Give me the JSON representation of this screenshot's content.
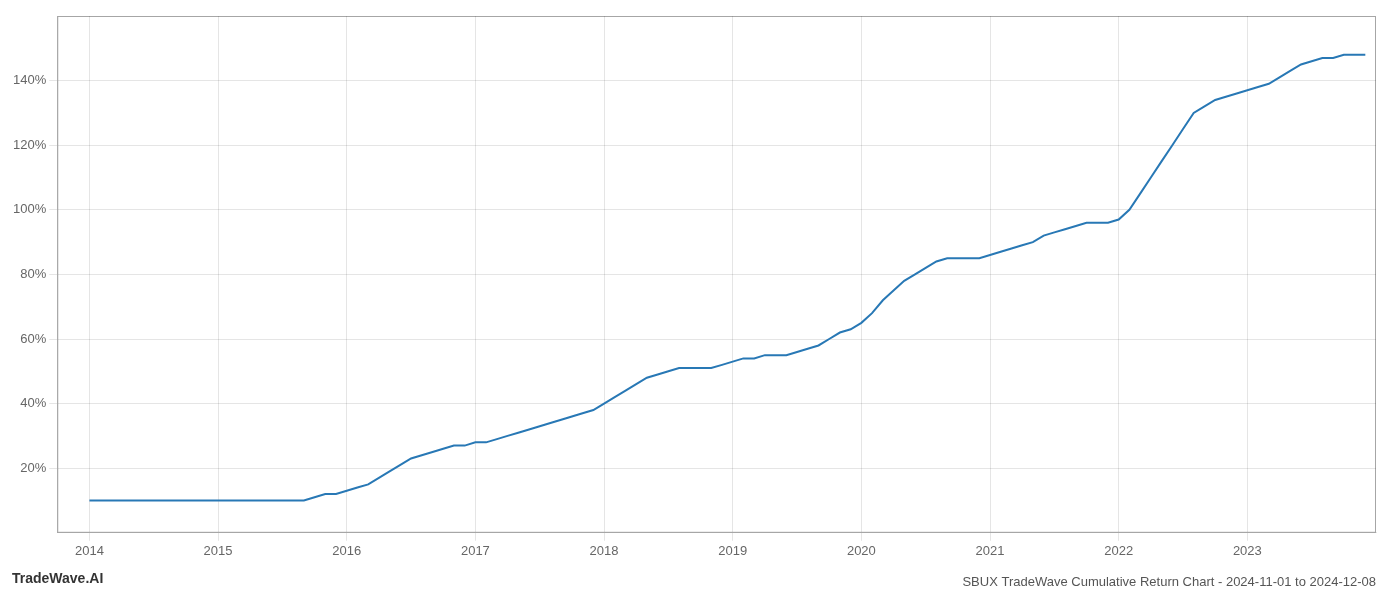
{
  "chart_data": {
    "type": "line",
    "title": "SBUX TradeWave Cumulative Return Chart - 2024-11-01 to 2024-12-08",
    "annotations": [
      {
        "text": "TradeWave.AI"
      }
    ],
    "color": "#2878b5",
    "grid": true,
    "x": [
      2014.0,
      2014.083,
      2014.167,
      2014.25,
      2014.333,
      2014.417,
      2014.5,
      2014.583,
      2014.667,
      2014.75,
      2014.833,
      2014.917,
      2015.0,
      2015.083,
      2015.167,
      2015.25,
      2015.333,
      2015.417,
      2015.5,
      2015.583,
      2015.667,
      2015.75,
      2015.833,
      2015.917,
      2016.0,
      2016.083,
      2016.167,
      2016.25,
      2016.333,
      2016.417,
      2016.5,
      2016.583,
      2016.667,
      2016.75,
      2016.833,
      2016.917,
      2017.0,
      2017.083,
      2017.167,
      2017.25,
      2017.333,
      2017.417,
      2017.5,
      2017.583,
      2017.667,
      2017.75,
      2017.833,
      2017.917,
      2018.0,
      2018.083,
      2018.167,
      2018.25,
      2018.333,
      2018.417,
      2018.5,
      2018.583,
      2018.667,
      2018.75,
      2018.833,
      2018.917,
      2019.0,
      2019.083,
      2019.167,
      2019.25,
      2019.333,
      2019.417,
      2019.5,
      2019.583,
      2019.667,
      2019.75,
      2019.833,
      2019.917,
      2020.0,
      2020.083,
      2020.167,
      2020.25,
      2020.333,
      2020.417,
      2020.5,
      2020.583,
      2020.667,
      2020.75,
      2020.833,
      2020.917,
      2021.0,
      2021.083,
      2021.167,
      2021.25,
      2021.333,
      2021.417,
      2021.5,
      2021.583,
      2021.667,
      2021.75,
      2021.833,
      2021.917,
      2022.0,
      2022.083,
      2022.167,
      2022.25,
      2022.333,
      2022.417,
      2022.5,
      2022.583,
      2022.667,
      2022.75,
      2022.833,
      2022.917,
      2023.0,
      2023.083,
      2023.167,
      2023.25,
      2023.333,
      2023.417,
      2023.5,
      2023.583,
      2023.667,
      2023.75,
      2023.833,
      2023.917
    ],
    "values": [
      10,
      10,
      10,
      10,
      10,
      10,
      10,
      10,
      10,
      10,
      10,
      10,
      10,
      10,
      10,
      10,
      10,
      10,
      10,
      10,
      10,
      11,
      12,
      12,
      13,
      14,
      15,
      17,
      19,
      21,
      23,
      24,
      25,
      26,
      27,
      27,
      28,
      28,
      29,
      30,
      31,
      32,
      33,
      34,
      35,
      36,
      37,
      38,
      40,
      42,
      44,
      46,
      48,
      49,
      50,
      51,
      51,
      51,
      51,
      52,
      53,
      54,
      54,
      55,
      55,
      55,
      56,
      57,
      58,
      60,
      62,
      63,
      65,
      68,
      72,
      75,
      78,
      80,
      82,
      84,
      85,
      85,
      85,
      85,
      86,
      87,
      88,
      89,
      90,
      92,
      93,
      94,
      95,
      96,
      96,
      96,
      97,
      100,
      105,
      110,
      115,
      120,
      125,
      130,
      132,
      134,
      135,
      136,
      137,
      138,
      139,
      141,
      143,
      145,
      146,
      147,
      147,
      148,
      148,
      148
    ],
    "xlim": [
      2013.75,
      2024.0
    ],
    "xticks": [
      2014,
      2015,
      2016,
      2017,
      2018,
      2019,
      2020,
      2021,
      2022,
      2023
    ],
    "ylim": [
      0,
      160
    ],
    "yticks": [
      {
        "value": 20,
        "label": "20%"
      },
      {
        "value": 40,
        "label": "40%"
      },
      {
        "value": 60,
        "label": "60%"
      },
      {
        "value": 80,
        "label": "80%"
      },
      {
        "value": 100,
        "label": "100%"
      },
      {
        "value": 120,
        "label": "120%"
      },
      {
        "value": 140,
        "label": "140%"
      }
    ]
  }
}
